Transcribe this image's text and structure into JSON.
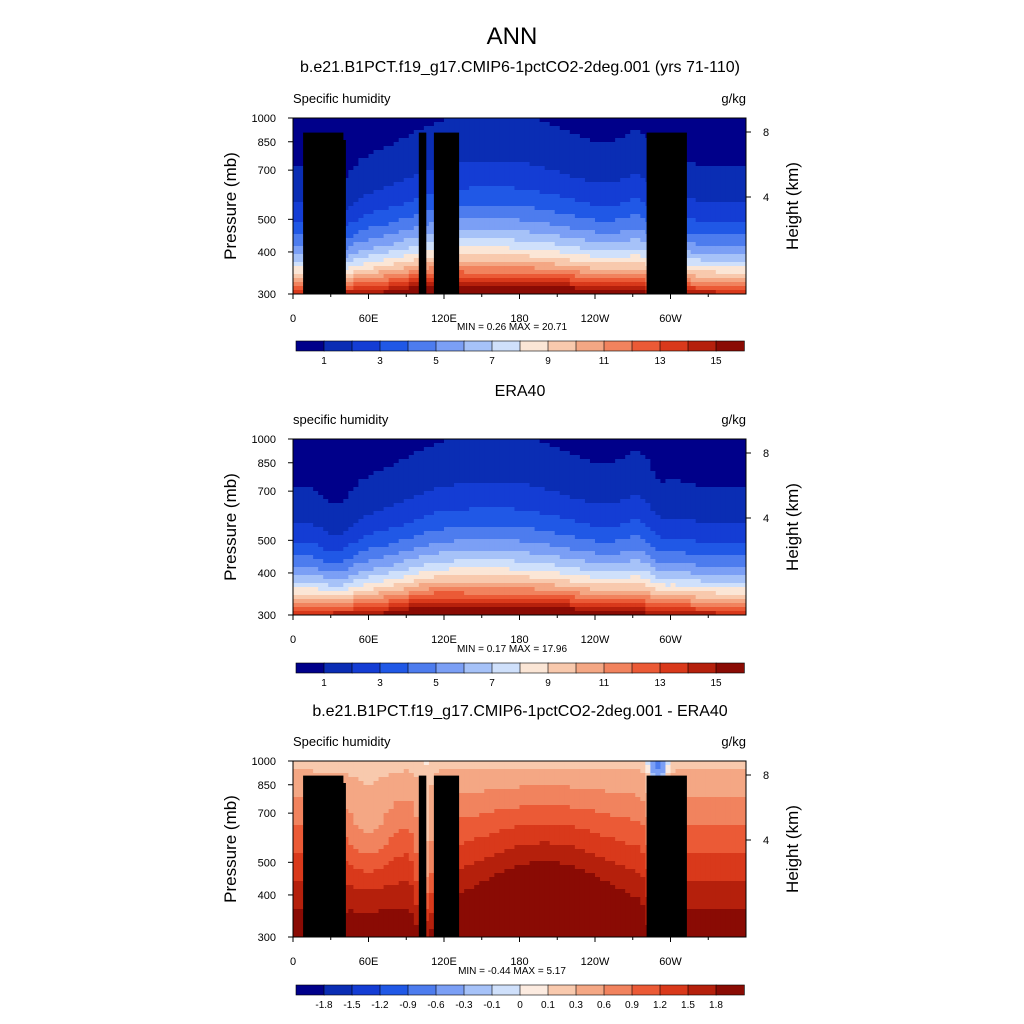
{
  "figure": {
    "title": "ANN"
  },
  "colors": {
    "sequential": [
      "#00008a",
      "#0a2db4",
      "#143dd4",
      "#2058e6",
      "#4d7cee",
      "#7b9ff5",
      "#a6c2f8",
      "#cfe0fb",
      "#fbe6d6",
      "#f8c9ad",
      "#f4a784",
      "#f1835e",
      "#eb5a36",
      "#d9391b",
      "#b5200c",
      "#8a0b04"
    ],
    "diverging": [
      "#00008a",
      "#0a2db4",
      "#143dd4",
      "#2058e6",
      "#4d7cee",
      "#7b9ff5",
      "#a6c2f8",
      "#cfe0fb",
      "#fcebe0",
      "#f8c9ad",
      "#f4a784",
      "#f1835e",
      "#eb5a36",
      "#d9391b",
      "#b5200c",
      "#8a0b04"
    ],
    "terrain": "#000000"
  },
  "chart_data": [
    {
      "type": "heatmap",
      "title": "b.e21.B1PCT.f19_g17.CMIP6-1pctCO2-2deg.001 (yrs 71-110)",
      "left_title": "Specific humidity",
      "right_title": "g/kg",
      "ylabel": "Pressure (mb)",
      "y2label": "Height (km)",
      "xticks": [
        "0",
        "60E",
        "120E",
        "180",
        "120W",
        "60W"
      ],
      "yticks": [
        "300",
        "400",
        "500",
        "700",
        "850",
        "1000"
      ],
      "y2ticks": [
        "8",
        "4"
      ],
      "ylim": [
        1000,
        300
      ],
      "xlim": [
        0,
        360
      ],
      "min_label": "MIN =   0.26  MAX =  20.71",
      "min": 0.26,
      "max": 20.71,
      "colorbar_ticks": [
        "1",
        "3",
        "5",
        "7",
        "9",
        "11",
        "13",
        "15"
      ],
      "colorbar_levels": [
        1,
        2,
        3,
        4,
        5,
        6,
        7,
        8,
        9,
        10,
        11,
        12,
        13,
        14,
        15
      ],
      "terrain": true
    },
    {
      "type": "heatmap",
      "title": "ERA40",
      "left_title": "specific humidity",
      "right_title": "g/kg",
      "ylabel": "Pressure (mb)",
      "y2label": "Height (km)",
      "xticks": [
        "0",
        "60E",
        "120E",
        "180",
        "120W",
        "60W"
      ],
      "yticks": [
        "300",
        "400",
        "500",
        "700",
        "850",
        "1000"
      ],
      "y2ticks": [
        "8",
        "4"
      ],
      "ylim": [
        1000,
        300
      ],
      "xlim": [
        0,
        360
      ],
      "min_label": "MIN =   0.17  MAX =  17.96",
      "min": 0.17,
      "max": 17.96,
      "colorbar_ticks": [
        "1",
        "3",
        "5",
        "7",
        "9",
        "11",
        "13",
        "15"
      ],
      "colorbar_levels": [
        1,
        2,
        3,
        4,
        5,
        6,
        7,
        8,
        9,
        10,
        11,
        12,
        13,
        14,
        15
      ],
      "terrain": false
    },
    {
      "type": "heatmap",
      "title": "b.e21.B1PCT.f19_g17.CMIP6-1pctCO2-2deg.001 - ERA40",
      "left_title": "Specific humidity",
      "right_title": "g/kg",
      "ylabel": "Pressure (mb)",
      "y2label": "Height (km)",
      "xticks": [
        "0",
        "60E",
        "120E",
        "180",
        "120W",
        "60W"
      ],
      "yticks": [
        "300",
        "400",
        "500",
        "700",
        "850",
        "1000"
      ],
      "y2ticks": [
        "8",
        "4"
      ],
      "ylim": [
        1000,
        300
      ],
      "xlim": [
        0,
        360
      ],
      "min_label": "MIN =  -0.44  MAX =   5.17",
      "min": -0.44,
      "max": 5.17,
      "colorbar_ticks": [
        "-1.8",
        "-1.5",
        "-1.2",
        "-0.9",
        "-0.6",
        "-0.3",
        "-0.1",
        "0",
        "0.1",
        "0.3",
        "0.6",
        "0.9",
        "1.2",
        "1.5",
        "1.8"
      ],
      "colorbar_levels": [
        -1.8,
        -1.5,
        -1.2,
        -0.9,
        -0.6,
        -0.3,
        -0.1,
        0,
        0.1,
        0.3,
        0.6,
        0.9,
        1.2,
        1.5,
        1.8
      ],
      "terrain": true
    }
  ]
}
